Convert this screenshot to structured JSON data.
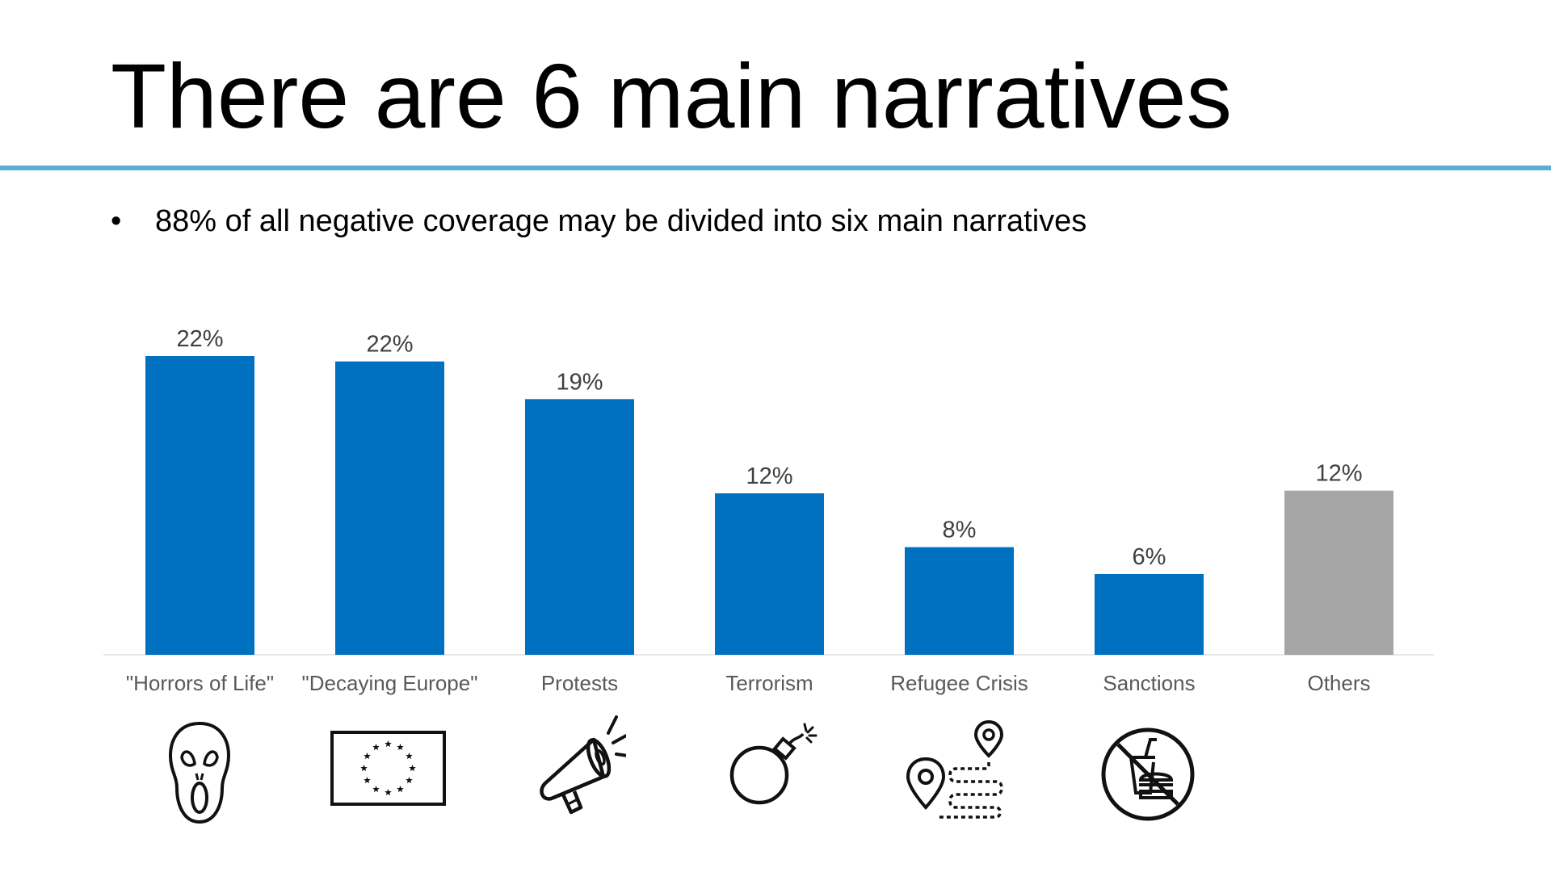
{
  "slide": {
    "title": "There are 6 main narratives",
    "bullet": "88% of all negative coverage may be divided into six main narratives"
  },
  "colors": {
    "accent_rule": "#5aafd3",
    "bar_primary": "#0070c0",
    "bar_other": "#a6a6a6",
    "label_text": "#404040"
  },
  "chart_data": {
    "type": "bar",
    "categories": [
      "\"Horrors of Life\"",
      "\"Decaying Europe\"",
      "Protests",
      "Terrorism",
      "Refugee Crisis",
      "Sanctions",
      "Others"
    ],
    "values": [
      22.2,
      21.8,
      19,
      12,
      8,
      6,
      12.2
    ],
    "data_labels": [
      "22%",
      "22%",
      "19%",
      "12%",
      "8%",
      "6%",
      "12%"
    ],
    "bar_colors": [
      "#0070c0",
      "#0070c0",
      "#0070c0",
      "#0070c0",
      "#0070c0",
      "#0070c0",
      "#a6a6a6"
    ],
    "ylim": [
      0,
      25
    ],
    "grid": false
  },
  "icons": [
    "scream-mask-icon",
    "eu-flag-icon",
    "megaphone-icon",
    "bomb-icon",
    "route-map-icon",
    "no-food-icon",
    ""
  ]
}
